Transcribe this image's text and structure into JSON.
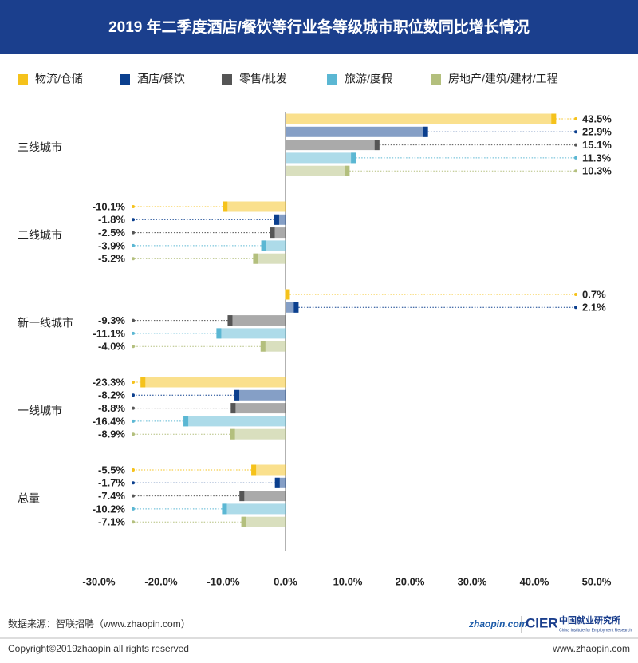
{
  "chart_data": {
    "type": "bar",
    "orientation": "horizontal",
    "title": "2019 年二季度酒店/餐饮等行业各等级城市职位数同比增长情况",
    "categories": [
      "三线城市",
      "二线城市",
      "新一线城市",
      "一线城市",
      "总量"
    ],
    "series": [
      {
        "name": "物流/仓储",
        "color": "#f5c21b",
        "values": [
          43.5,
          -10.1,
          0.7,
          -23.3,
          -5.5
        ],
        "value_labels": [
          "43.5%",
          "-10.1%",
          "0.7%",
          "-23.3%",
          "-5.5%"
        ]
      },
      {
        "name": "酒店/餐饮",
        "color": "#0b3f8e",
        "values": [
          22.9,
          -1.8,
          2.1,
          -8.2,
          -1.7
        ],
        "value_labels": [
          "22.9%",
          "-1.8%",
          "2.1%",
          "-8.2%",
          "-1.7%"
        ]
      },
      {
        "name": "零售/批发",
        "color": "#555555",
        "values": [
          15.1,
          -2.5,
          -9.3,
          -8.8,
          -7.4
        ],
        "value_labels": [
          "15.1%",
          "-2.5%",
          "-9.3%",
          "-8.8%",
          "-7.4%"
        ]
      },
      {
        "name": "旅游/度假",
        "color": "#5bb7d3",
        "values": [
          11.3,
          -3.9,
          -11.1,
          -16.4,
          -10.2
        ],
        "value_labels": [
          "11.3%",
          "-3.9%",
          "-11.1%",
          "-16.4%",
          "-10.2%"
        ]
      },
      {
        "name": "房地产/建筑/建材/工程",
        "color": "#b3bf7d",
        "values": [
          10.3,
          -5.2,
          -4.0,
          -8.9,
          -7.1
        ],
        "value_labels": [
          "10.3%",
          "-5.2%",
          "-4.0%",
          "-8.9%",
          "-7.1%"
        ]
      }
    ],
    "xlim": [
      -30,
      50
    ],
    "xticks": [
      {
        "value": -30,
        "label": "-30.0%"
      },
      {
        "value": -20,
        "label": "-20.0%"
      },
      {
        "value": -10,
        "label": "-10.0%"
      },
      {
        "value": 0,
        "label": "0.0%"
      },
      {
        "value": 10,
        "label": "10.0%"
      },
      {
        "value": 20,
        "label": "20.0%"
      },
      {
        "value": 30,
        "label": "30.0%"
      },
      {
        "value": 40,
        "label": "40.0%"
      },
      {
        "value": 50,
        "label": "50.0%"
      }
    ],
    "legend": "top"
  },
  "footer": {
    "source": "数据来源：智联招聘（www.zhaopin.com）",
    "copyright": "Copyright©2019zhaopin all rights reserved",
    "website": "www.zhaopin.com",
    "logo1": "zhaopin.com",
    "logo2": "CIER",
    "logo2_cn": "中国就业研究所",
    "logo2_en": "China Institute for Employment Research"
  }
}
